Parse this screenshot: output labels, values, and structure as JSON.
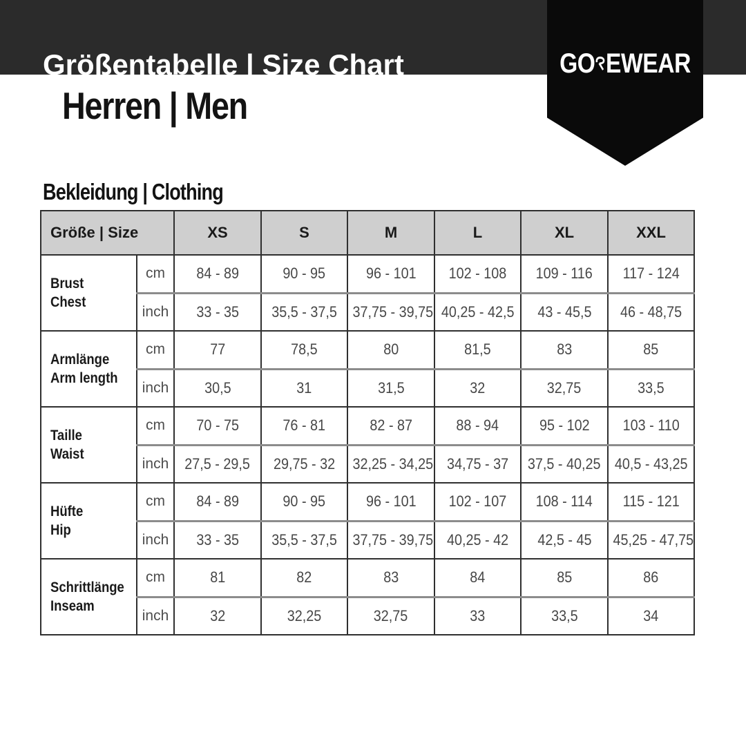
{
  "header": {
    "bar_title": "Größentabelle | Size Chart",
    "subtitle": "Herren | Men",
    "logo": {
      "prefix": "GO",
      "suffix": "EWEAR",
      "full_name": "GOREWEAR"
    }
  },
  "section": {
    "heading": "Bekleidung | Clothing"
  },
  "table": {
    "corner_label": "Größe | Size",
    "size_columns": [
      "XS",
      "S",
      "M",
      "L",
      "XL",
      "XXL"
    ],
    "units": {
      "cm": "cm",
      "inch": "inch"
    },
    "rows": [
      {
        "label_de": "Brust",
        "label_en": "Chest",
        "cm": [
          "84 - 89",
          "90 - 95",
          "96 - 101",
          "102 - 108",
          "109 - 116",
          "117 - 124"
        ],
        "inch": [
          "33 - 35",
          "35,5 - 37,5",
          "37,75 - 39,75",
          "40,25 - 42,5",
          "43 - 45,5",
          "46 - 48,75"
        ]
      },
      {
        "label_de": "Armlänge",
        "label_en": "Arm length",
        "cm": [
          "77",
          "78,5",
          "80",
          "81,5",
          "83",
          "85"
        ],
        "inch": [
          "30,5",
          "31",
          "31,5",
          "32",
          "32,75",
          "33,5"
        ]
      },
      {
        "label_de": "Taille",
        "label_en": "Waist",
        "cm": [
          "70 - 75",
          "76 - 81",
          "82 - 87",
          "88 - 94",
          "95 - 102",
          "103 - 110"
        ],
        "inch": [
          "27,5 - 29,5",
          "29,75 - 32",
          "32,25 - 34,25",
          "34,75 - 37",
          "37,5 - 40,25",
          "40,5 - 43,25"
        ]
      },
      {
        "label_de": "Hüfte",
        "label_en": "Hip",
        "cm": [
          "84 - 89",
          "90 - 95",
          "96 - 101",
          "102 - 107",
          "108 - 114",
          "115 - 121"
        ],
        "inch": [
          "33 - 35",
          "35,5 - 37,5",
          "37,75 - 39,75",
          "40,25 - 42",
          "42,5 - 45",
          "45,25 - 47,75"
        ]
      },
      {
        "label_de": "Schrittlänge",
        "label_en": "Inseam",
        "cm": [
          "81",
          "82",
          "83",
          "84",
          "85",
          "86"
        ],
        "inch": [
          "32",
          "32,25",
          "32,75",
          "33",
          "33,5",
          "34"
        ]
      }
    ]
  },
  "colors": {
    "top_bar": "#2b2b2b",
    "ribbon": "#0a0a0a",
    "table_header_bg": "#cfcfcf",
    "border_dark": "#2f2f2f",
    "border_light": "#8c8c8c",
    "text_primary": "#1a1a1a",
    "text_values": "#474747"
  }
}
